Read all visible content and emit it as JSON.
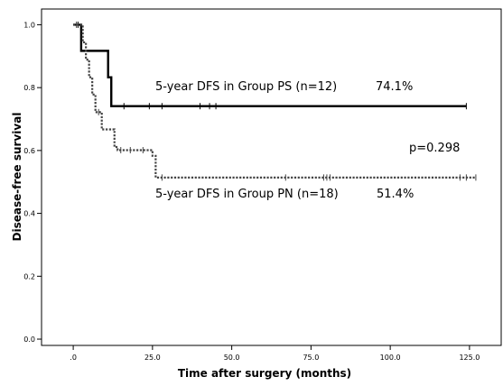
{
  "chart_data": {
    "type": "line",
    "title": "",
    "xlabel": "Time after surgery (months)",
    "ylabel": "Disease-free survival",
    "xlim": [
      -10,
      135
    ],
    "ylim": [
      -0.02,
      1.05
    ],
    "x_ticks": [
      ".0",
      "25.0",
      "50.0",
      "75.0",
      "100.0",
      "125.0"
    ],
    "x_tick_values": [
      0,
      25,
      50,
      75,
      100,
      125
    ],
    "y_ticks": [
      "0.0",
      "0.2",
      "0.4",
      "0.6",
      "0.8",
      "1.0"
    ],
    "y_tick_values": [
      0,
      0.2,
      0.4,
      0.6,
      0.8,
      1.0
    ],
    "grid": false,
    "legend": "none",
    "series": [
      {
        "style": "solid",
        "color": "#000000",
        "steps": [
          [
            0,
            1.0
          ],
          [
            2.5,
            0.917
          ],
          [
            11,
            0.833
          ],
          [
            12,
            0.741
          ],
          [
            124,
            0.741
          ]
        ],
        "censored": [
          1.5,
          16,
          24,
          28,
          40,
          43,
          45,
          124
        ]
      },
      {
        "style": "dotted",
        "color": "#444444",
        "steps": [
          [
            0,
            1.0
          ],
          [
            3,
            0.944
          ],
          [
            4,
            0.889
          ],
          [
            5,
            0.833
          ],
          [
            6,
            0.778
          ],
          [
            7,
            0.722
          ],
          [
            9,
            0.667
          ],
          [
            13,
            0.611
          ],
          [
            14,
            0.601
          ],
          [
            25,
            0.583
          ],
          [
            26,
            0.514
          ],
          [
            127,
            0.514
          ]
        ],
        "censored": [
          1,
          8,
          15,
          18,
          22,
          28,
          67,
          79,
          80,
          81,
          122,
          124,
          127
        ]
      }
    ],
    "annotations": {
      "ps_label": "5-year DFS in Group PS (n=12)",
      "ps_value": "74.1%",
      "pval": "p=0.298",
      "pn_label": "5-year DFS in Group PN (n=18)",
      "pn_value": "51.4%"
    }
  }
}
